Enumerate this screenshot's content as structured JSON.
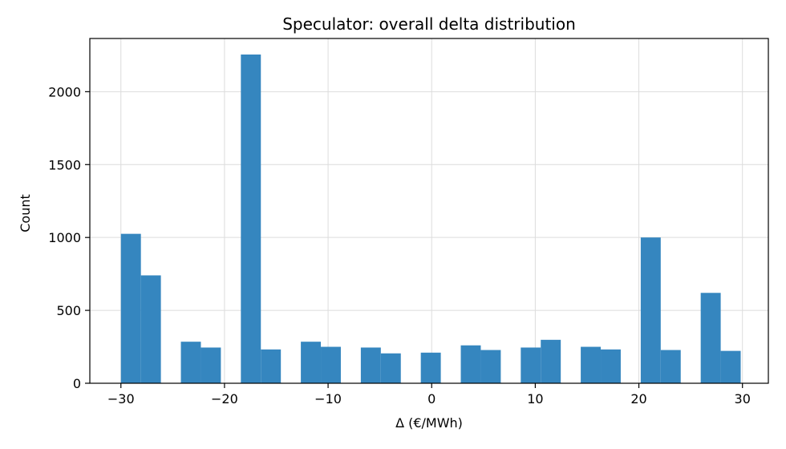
{
  "chart_data": {
    "type": "bar",
    "title": "Speculator: overall delta distribution",
    "xlabel": "Δ (€/MWh)",
    "ylabel": "Count",
    "xlim": [
      -33,
      32.5
    ],
    "ylim": [
      0,
      2365
    ],
    "xticks": [
      -30,
      -20,
      -10,
      0,
      10,
      20,
      30
    ],
    "xtick_labels": [
      "−30",
      "−20",
      "−10",
      "0",
      "10",
      "20",
      "30"
    ],
    "yticks": [
      0,
      500,
      1000,
      1500,
      2000
    ],
    "ytick_labels": [
      "0",
      "500",
      "1000",
      "1500",
      "2000"
    ],
    "grid": true,
    "bar_color": "#3586bf",
    "bins": [
      {
        "x0": -30.0,
        "x1": -28.07,
        "value": 1025
      },
      {
        "x0": -28.07,
        "x1": -26.14,
        "value": 740
      },
      {
        "x0": -24.21,
        "x1": -22.28,
        "value": 285
      },
      {
        "x0": -22.28,
        "x1": -20.35,
        "value": 245
      },
      {
        "x0": -18.42,
        "x1": -16.49,
        "value": 2255
      },
      {
        "x0": -16.49,
        "x1": -14.56,
        "value": 232
      },
      {
        "x0": -12.63,
        "x1": -10.7,
        "value": 285
      },
      {
        "x0": -10.7,
        "x1": -8.77,
        "value": 250
      },
      {
        "x0": -6.84,
        "x1": -4.91,
        "value": 245
      },
      {
        "x0": -4.91,
        "x1": -2.98,
        "value": 205
      },
      {
        "x0": -1.05,
        "x1": 0.88,
        "value": 210
      },
      {
        "x0": 2.81,
        "x1": 4.74,
        "value": 260
      },
      {
        "x0": 4.74,
        "x1": 6.67,
        "value": 228
      },
      {
        "x0": 8.6,
        "x1": 10.53,
        "value": 245
      },
      {
        "x0": 10.53,
        "x1": 12.46,
        "value": 298
      },
      {
        "x0": 14.39,
        "x1": 16.32,
        "value": 250
      },
      {
        "x0": 16.32,
        "x1": 18.25,
        "value": 232
      },
      {
        "x0": 20.18,
        "x1": 22.11,
        "value": 1000
      },
      {
        "x0": 22.11,
        "x1": 24.04,
        "value": 228
      },
      {
        "x0": 25.97,
        "x1": 27.9,
        "value": 620
      },
      {
        "x0": 27.9,
        "x1": 29.83,
        "value": 222
      }
    ]
  }
}
